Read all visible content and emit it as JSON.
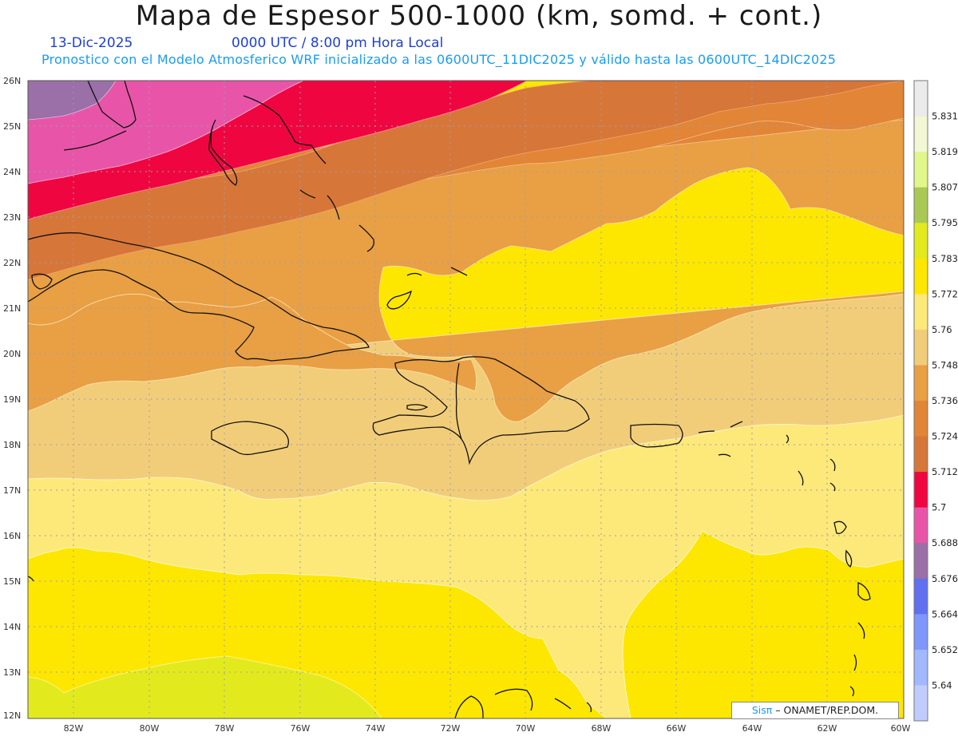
{
  "header": {
    "title": "Mapa de Espesor 500-1000 (km, somd. + cont.)",
    "date": "13-Dic-2025",
    "time": "0000 UTC / 8:00 pm Hora Local",
    "description": "Pronostico con el Modelo Atmosferico WRF inicializado a las 0600UTC_11DIC2025 y válido hasta las  0600UTC_14DIC2025"
  },
  "axes": {
    "lat_labels": [
      "26N",
      "25N",
      "24N",
      "23N",
      "22N",
      "21N",
      "20N",
      "19N",
      "18N",
      "17N",
      "16N",
      "15N",
      "14N",
      "13N",
      "12N"
    ],
    "lon_labels": [
      "82W",
      "80W",
      "78W",
      "76W",
      "74W",
      "72W",
      "70W",
      "68W",
      "66W",
      "64W",
      "62W",
      "60W"
    ]
  },
  "colorbar": {
    "levels": [
      "5.831",
      "5.819",
      "5.807",
      "5.795",
      "5.783",
      "5.772",
      "5.76",
      "5.748",
      "5.736",
      "5.724",
      "5.712",
      "5.7",
      "5.688",
      "5.676",
      "5.664",
      "5.652",
      "5.64"
    ],
    "colors": [
      "#ebebeb",
      "#f3f7d4",
      "#e1f78c",
      "#a9c954",
      "#e2ea1e",
      "#fde700",
      "#fde87a",
      "#f2cd79",
      "#e99f44",
      "#e28536",
      "#d77639",
      "#ef0640",
      "#e855a8",
      "#9b6fa8",
      "#6070f0",
      "#7f96fb",
      "#a1b8fc",
      "#c1ccfc"
    ]
  },
  "legend_credit": {
    "brand": "Sisπ",
    "text": "– ONAMET/REP.DOM."
  },
  "map": {
    "fill_colors": {
      "band_5700": "#e855a8",
      "band_5712": "#ef0640",
      "band_5724": "#d77639",
      "band_5736": "#e28536",
      "band_5748": "#e99f44",
      "band_5760": "#f2cd79",
      "band_5772": "#fde87a",
      "band_5783": "#fde700",
      "band_5795": "#e2ea1e",
      "band_5688": "#9b6fa8"
    }
  }
}
